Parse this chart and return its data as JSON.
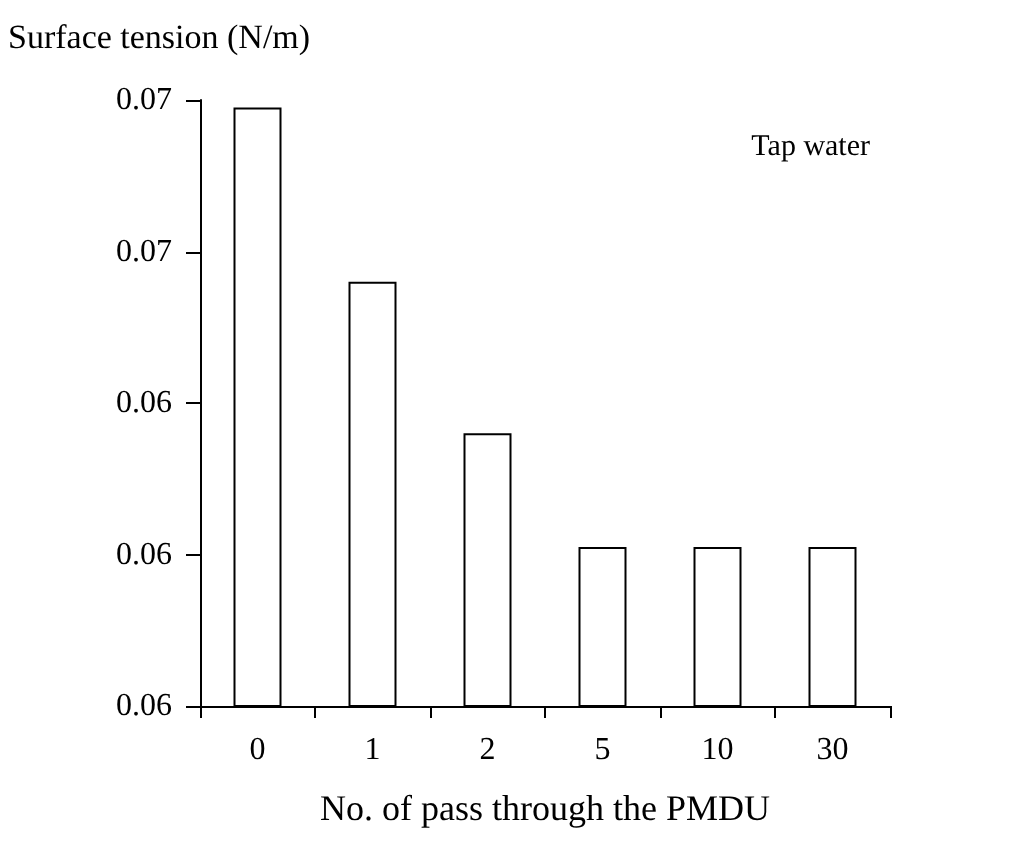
{
  "chart_data": {
    "type": "bar",
    "xlabel": "No. of pass through the PMDU",
    "ylabel": "Surface tension (N/m)",
    "categories": [
      "0",
      "1",
      "2",
      "5",
      "10",
      "30"
    ],
    "values": [
      0.0679,
      0.0656,
      0.0636,
      0.0621,
      0.0621,
      0.0621
    ],
    "color": "#ffffff",
    "ylim": [
      0.06,
      0.068
    ],
    "yticks": [
      {
        "value": 0.06,
        "label": "0.06"
      },
      {
        "value": 0.062,
        "label": "0.06"
      },
      {
        "value": 0.064,
        "label": "0.06"
      },
      {
        "value": 0.066,
        "label": "0.07"
      },
      {
        "value": 0.068,
        "label": "0.07"
      }
    ],
    "annotations": [
      "Tap water"
    ]
  }
}
